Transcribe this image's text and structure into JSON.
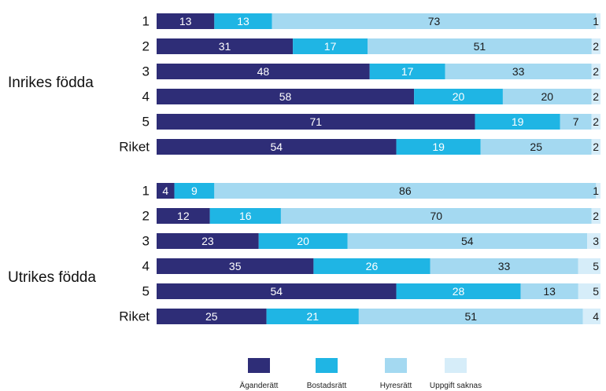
{
  "chart_data": {
    "type": "bar",
    "orientation": "horizontal",
    "stacked": true,
    "normalized_percent": true,
    "colors": [
      "#2e2d77",
      "#1fb5e4",
      "#a4d9f1",
      "#d6edf9"
    ],
    "series_names": [
      "Äganderätt",
      "Bostadsrätt",
      "Hyresrätt",
      "Uppgift saknas"
    ],
    "groups": [
      {
        "name": "Inrikes födda",
        "categories": [
          "1",
          "2",
          "3",
          "4",
          "5",
          "Riket"
        ],
        "series": [
          {
            "name": "Äganderätt",
            "values": [
              13,
              31,
              48,
              58,
              71,
              54
            ]
          },
          {
            "name": "Bostadsrätt",
            "values": [
              13,
              17,
              17,
              20,
              19,
              19
            ]
          },
          {
            "name": "Hyresrätt",
            "values": [
              73,
              51,
              33,
              20,
              7,
              25
            ]
          },
          {
            "name": "Uppgift saknas",
            "values": [
              1,
              2,
              2,
              2,
              2,
              2
            ]
          }
        ]
      },
      {
        "name": "Utrikes födda",
        "categories": [
          "1",
          "2",
          "3",
          "4",
          "5",
          "Riket"
        ],
        "series": [
          {
            "name": "Äganderätt",
            "values": [
              4,
              12,
              23,
              35,
              54,
              25
            ]
          },
          {
            "name": "Bostadsrätt",
            "values": [
              9,
              16,
              20,
              26,
              28,
              21
            ]
          },
          {
            "name": "Hyresrätt",
            "values": [
              86,
              70,
              54,
              33,
              13,
              51
            ]
          },
          {
            "name": "Uppgift saknas",
            "values": [
              1,
              2,
              3,
              5,
              5,
              4
            ]
          }
        ]
      }
    ],
    "legend_position": "bottom",
    "grid": false
  }
}
